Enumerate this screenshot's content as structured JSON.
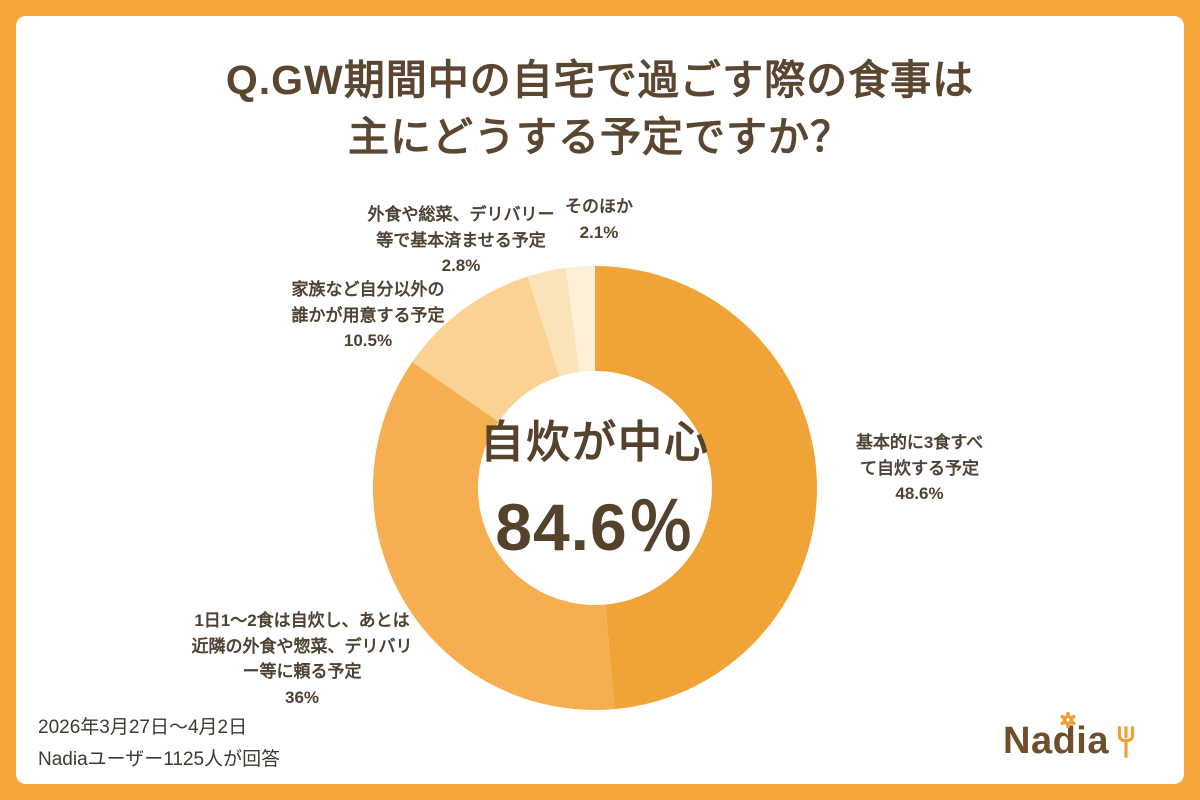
{
  "title": {
    "line1": "Q.GW期間中の自宅で過ごす際の食事は",
    "line2": "主にどうする予定ですか？"
  },
  "chart_data": {
    "type": "pie",
    "subtype": "donut",
    "title": "GW期間中の自宅で過ごす際の食事は主にどうする予定ですか？",
    "unit": "%",
    "total": 100,
    "start_angle_deg": 0,
    "direction": "clockwise",
    "legend_position": "around-chart",
    "center_label": {
      "text": "自炊が中心",
      "value": 84.6,
      "display": "84.6％"
    },
    "segments": [
      {
        "label": "基本的に3食すべて自炊する予定",
        "value": 48.6,
        "display": "48.6%",
        "color": "#F0A438"
      },
      {
        "label": "1日1〜2食は自炊し、あとは近隣の外食や惣菜、デリバリー等に頼る予定",
        "value": 36,
        "display": "36%",
        "color": "#F5AF50"
      },
      {
        "label": "家族など自分以外の誰かが用意する予定",
        "value": 10.5,
        "display": "10.5%",
        "color": "#FAD294"
      },
      {
        "label": "外食や総菜、デリバリー等で基本済ませる予定",
        "value": 2.8,
        "display": "2.8%",
        "color": "#FBE3B9"
      },
      {
        "label": "そのほか",
        "value": 2.1,
        "display": "2.1%",
        "color": "#FDF0D7"
      }
    ]
  },
  "callouts": [
    {
      "text": "基本的に3食すべ\nて自炊する予定\n48.6%"
    },
    {
      "text": "1日1〜2食は自炊し、あとは\n近隣の外食や惣菜、デリバリ\nー等に頼る予定\n36%"
    },
    {
      "text": "家族など自分以外の\n誰かが用意する予定\n10.5%"
    },
    {
      "text": "外食や総菜、デリバリー\n等で基本済ませる予定\n2.8%"
    },
    {
      "text": "そのほか\n2.1%"
    }
  ],
  "footer": {
    "period": "2026年3月27日〜4月2日",
    "respondents": "Nadiaユーザー1125人が回答"
  },
  "logo": {
    "text": "Nadia",
    "flower_icon": "flower-icon",
    "fork_icon": "fork-icon"
  },
  "colors": {
    "frame": "#F4A738",
    "background": "#FFFFFF",
    "text_dark": "#5B4731",
    "logo_brown": "#6E4E2B",
    "accent_orange": "#EF9F33"
  }
}
